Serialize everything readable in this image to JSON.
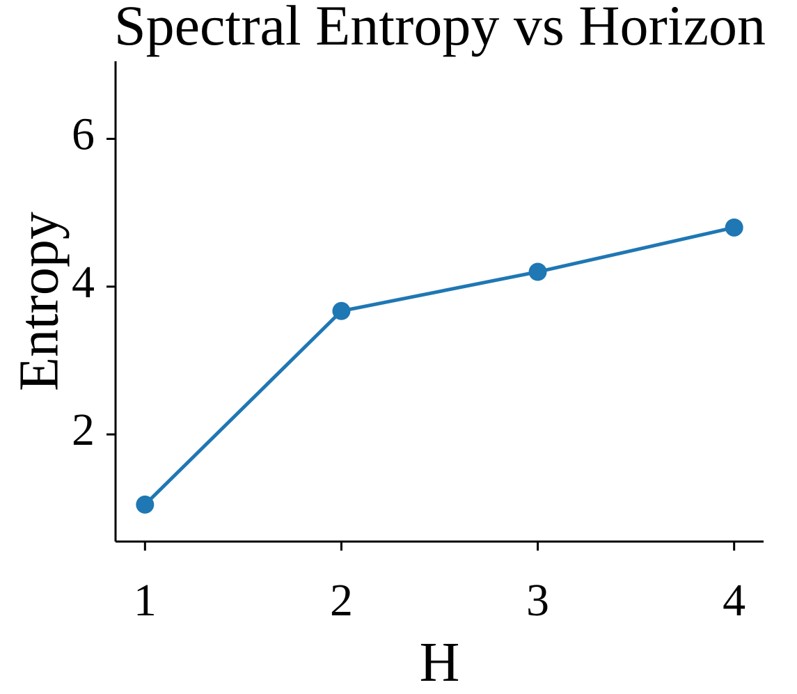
{
  "chart_data": {
    "type": "line",
    "title": "Spectral Entropy vs Horizon",
    "xlabel": "H",
    "ylabel": "Entropy",
    "x": [
      1,
      2,
      3,
      4
    ],
    "x_ticks": [
      "1",
      "2",
      "3",
      "4"
    ],
    "y_ticks": [
      2,
      4,
      6
    ],
    "y_tick_labels": [
      "2",
      "4",
      "6"
    ],
    "xlim": [
      0.85,
      4.15
    ],
    "ylim": [
      0.55,
      7.05
    ],
    "grid": false,
    "series": [
      {
        "values": [
          1.05,
          3.67,
          4.2,
          4.8
        ],
        "color": "#1f77b4"
      }
    ]
  }
}
